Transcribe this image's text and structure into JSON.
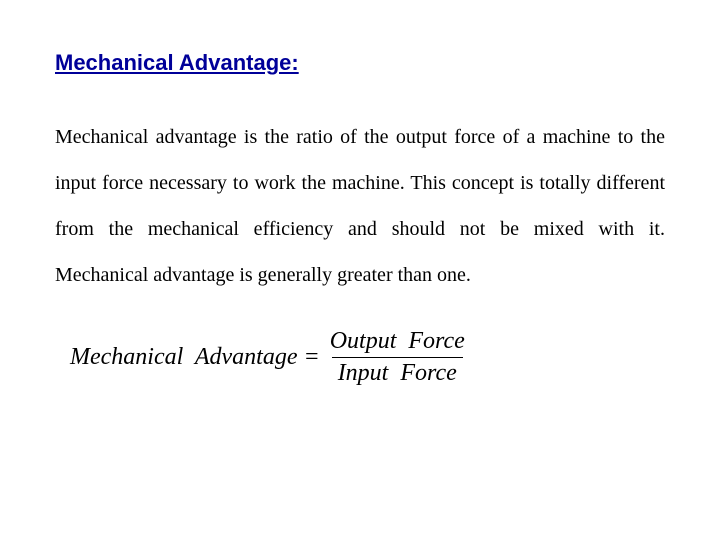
{
  "heading": {
    "text": "Mechanical Advantage:",
    "color": "#000099",
    "fontsize": 22
  },
  "body": {
    "text": "Mechanical advantage is the ratio of the output force of a machine to the input force necessary to work the machine. This concept is totally different from the mechanical efficiency and should not be mixed with it. Mechanical advantage is generally greater than one.",
    "color": "#000000",
    "fontsize": 20
  },
  "formula": {
    "left": "Mechanical  Advantage =",
    "numerator": "Output  Force",
    "denominator": "Input  Force",
    "color": "#000000",
    "fontsize": 24,
    "line_color": "#000000",
    "line_width": 1
  },
  "background_color": "#ffffff"
}
